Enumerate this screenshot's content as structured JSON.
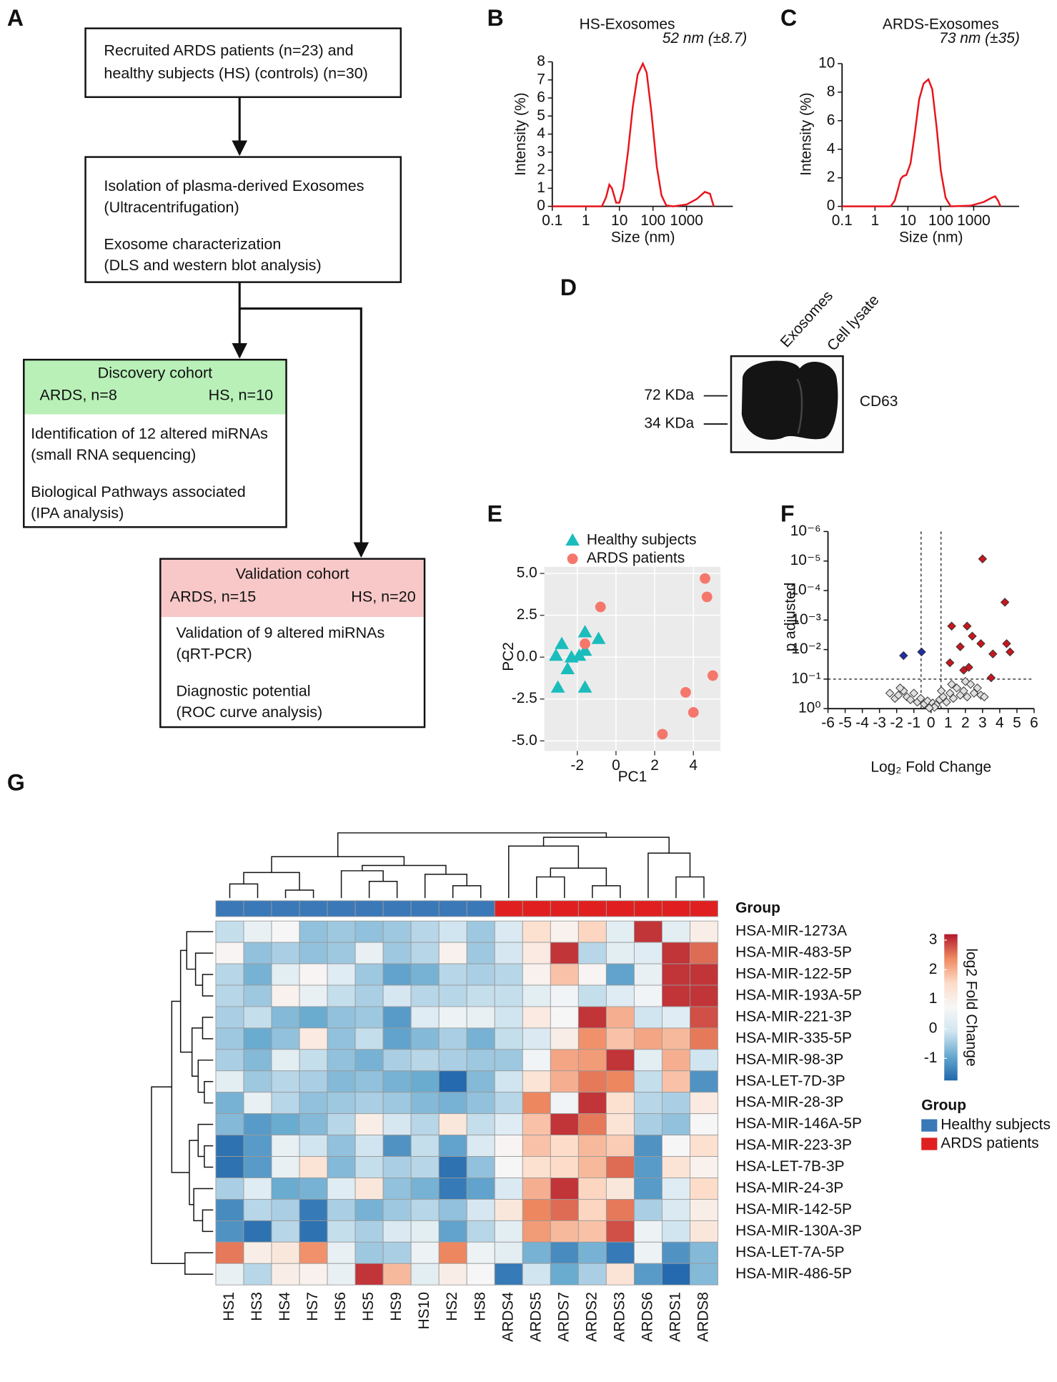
{
  "panel_labels": [
    "A",
    "B",
    "C",
    "D",
    "E",
    "F",
    "G"
  ],
  "flowchart": {
    "boxes": [
      {
        "lines": [
          "Recruited ARDS patients (n=23) and",
          "healthy subjects (HS) (controls) (n=30)"
        ]
      },
      {
        "lines": [
          "Isolation of plasma-derived Exosomes",
          "(Ultracentrifugation)",
          "Exosome characterization",
          "(DLS and western blot analysis)"
        ]
      },
      {
        "header": {
          "title": "Discovery cohort",
          "left": "ARDS, n=8",
          "right": "HS, n=10"
        },
        "lines": [
          "Identification of 12 altered miRNAs",
          "(small RNA sequencing)",
          "Biological Pathways associated",
          "(IPA analysis)"
        ]
      },
      {
        "header": {
          "title": "Validation cohort",
          "left": "ARDS, n=15",
          "right": "HS, n=20"
        },
        "lines": [
          "Validation of 9 altered miRNAs",
          "(qRT-PCR)",
          "Diagnostic potential",
          "(ROC curve analysis)"
        ]
      }
    ]
  },
  "blot": {
    "lanes": [
      "Exosomes",
      "Cell lysate"
    ],
    "markers": [
      "72 KDa",
      "34 KDa"
    ],
    "protein": "CD63"
  },
  "chart_data": [
    {
      "type": "line",
      "title": "HS-Exosomes",
      "annotation": "52 nm (±8.7)",
      "x_label": "Size (nm)",
      "y_label": "Intensity (%)",
      "x": [
        0.1,
        3,
        4,
        5,
        6,
        8,
        10,
        13,
        18,
        25,
        35,
        50,
        65,
        90,
        130,
        180,
        250,
        400,
        1000,
        2000,
        3500,
        5000,
        6000,
        6500
      ],
      "values": [
        0,
        0,
        0.5,
        1.2,
        1.0,
        0.2,
        0.2,
        1.0,
        3.0,
        5.5,
        7.3,
        7.9,
        7.4,
        5.2,
        2.2,
        0.6,
        0.05,
        0,
        0.1,
        0.4,
        0.8,
        0.7,
        0.2,
        0
      ],
      "color": "#e8141c",
      "xscale": "log",
      "xlim": [
        0.1,
        24000
      ],
      "xticks": [
        0.1,
        1,
        10,
        100,
        1000
      ],
      "ylim": [
        0,
        8
      ],
      "yticks": [
        0,
        1,
        2,
        3,
        4,
        5,
        6,
        7,
        8
      ]
    },
    {
      "type": "line",
      "title": "ARDS-Exosomes",
      "annotation": "73 nm (±35)",
      "x_label": "Size (nm)",
      "y_label": "Intensity (%)",
      "x": [
        0.1,
        3,
        4,
        5,
        6,
        7,
        9,
        12,
        16,
        22,
        30,
        42,
        55,
        75,
        100,
        140,
        200,
        800,
        2000,
        3500,
        4500,
        5500,
        6500
      ],
      "values": [
        0,
        0,
        0.4,
        1.2,
        1.9,
        2.1,
        2.2,
        3.0,
        5.0,
        7.5,
        8.6,
        8.9,
        8.2,
        5.5,
        2.5,
        0.6,
        0,
        0.05,
        0.3,
        0.6,
        0.7,
        0.4,
        0
      ],
      "color": "#e8141c",
      "xscale": "log",
      "xlim": [
        0.1,
        24000
      ],
      "xticks": [
        0.1,
        1,
        10,
        100,
        1000
      ],
      "ylim": [
        0,
        10
      ],
      "yticks": [
        0,
        2,
        4,
        6,
        8,
        10
      ]
    },
    {
      "type": "scatter",
      "x_label": "PC1",
      "y_label": "PC2",
      "series": [
        {
          "name": "Healthy subjects",
          "color": "#1bbcbc",
          "marker": "triangle",
          "x": [
            -3.1,
            -2.8,
            -2.3,
            -2.5,
            -1.9,
            -1.6,
            -1.6,
            -0.9,
            -3.0,
            -1.6
          ],
          "values": [
            0.1,
            0.8,
            0.0,
            -0.7,
            0.1,
            1.5,
            0.4,
            1.1,
            -1.8,
            -1.8
          ]
        },
        {
          "name": "ARDS patients",
          "color": "#f5776c",
          "marker": "circle",
          "x": [
            -0.8,
            -1.6,
            4.6,
            4.7,
            5.0,
            3.6,
            4.0,
            2.4
          ],
          "values": [
            3.0,
            0.8,
            4.7,
            3.6,
            -1.1,
            -2.1,
            -3.3,
            -4.6
          ]
        }
      ],
      "xlim": [
        -3.7,
        5.4
      ],
      "xticks": [
        -2,
        0,
        2,
        4
      ],
      "ylim": [
        -5.6,
        5.4
      ],
      "yticks": [
        {
          "value": -5,
          "label": "-5.0"
        },
        -2.5,
        {
          "value": 0,
          "label": "0.0"
        },
        2.5,
        {
          "value": 5,
          "label": "5.0"
        }
      ],
      "grid": true,
      "background": "#ebebeb"
    },
    {
      "type": "volcano",
      "x_label": "Log₂ Fold Change",
      "y_label": "p adjusted",
      "series": [
        {
          "color": "#e0e0e0",
          "marker": "diamond",
          "x": [
            -2.4,
            -2.1,
            -1.9,
            -1.6,
            -1.4,
            -1.2,
            -1.0,
            -0.8,
            -0.6,
            -0.4,
            -0.2,
            0.0,
            0.1,
            0.3,
            0.5,
            0.7,
            0.9,
            1.1,
            1.3,
            1.5,
            1.7,
            1.9,
            2.1,
            2.3,
            2.5,
            2.7,
            2.9,
            3.1,
            1.2,
            0.6,
            -1.8,
            2.0,
            0.2,
            -0.1
          ],
          "values": [
            0.3,
            0.45,
            0.35,
            0.25,
            0.4,
            0.5,
            0.3,
            0.6,
            0.45,
            0.7,
            0.55,
            0.85,
            0.65,
            0.75,
            0.5,
            0.4,
            0.6,
            0.3,
            0.45,
            0.2,
            0.35,
            0.25,
            0.4,
            0.15,
            0.3,
            0.2,
            0.35,
            0.4,
            0.15,
            0.25,
            0.2,
            0.12,
            0.9,
            0.95
          ]
        },
        {
          "color": "#1f2fa8",
          "marker": "diamond",
          "x": [
            -1.6,
            -0.55
          ],
          "values": [
            0.016,
            0.012
          ]
        },
        {
          "color": "#c8161e",
          "marker": "diamond",
          "x": [
            3.0,
            4.3,
            1.2,
            2.1,
            2.4,
            1.7,
            2.9,
            4.4,
            4.6,
            3.6,
            1.1,
            2.2,
            1.9,
            3.5
          ],
          "values": [
            8.5e-06,
            0.00025,
            0.0016,
            0.0016,
            0.0035,
            0.008,
            0.0063,
            0.0063,
            0.012,
            0.014,
            0.028,
            0.04,
            0.05,
            0.09
          ]
        }
      ],
      "cutoff_lines": {
        "x": [
          -0.58,
          0.58
        ],
        "y": 0.1
      },
      "xlim": [
        -6,
        6
      ],
      "xticks": [
        -6,
        -5,
        -4,
        -3,
        -2,
        -1,
        0,
        1,
        2,
        3,
        4,
        5,
        6
      ],
      "yscale": "log",
      "ylim": [
        1,
        1e-06
      ],
      "yticks": [
        {
          "value": 1e-06,
          "label": "10⁻⁶"
        },
        {
          "value": 1e-05,
          "label": "10⁻⁵"
        },
        {
          "value": 0.0001,
          "label": "10⁻⁴"
        },
        {
          "value": 0.001,
          "label": "10⁻³"
        },
        {
          "value": 0.01,
          "label": "10⁻²"
        },
        {
          "value": 0.1,
          "label": "10⁻¹"
        },
        {
          "value": 1,
          "label": "10⁰"
        }
      ]
    },
    {
      "type": "heatmap",
      "colorbar_label": "log2 Fold Change",
      "group_title": "Group",
      "categories": [
        "HS1",
        "HS3",
        "HS4",
        "HS7",
        "HS6",
        "HS5",
        "HS9",
        "HS10",
        "HS2",
        "HS8",
        "ARDS4",
        "ARDS5",
        "ARDS7",
        "ARDS2",
        "ARDS3",
        "ARDS6",
        "ARDS1",
        "ARDS8"
      ],
      "rows": [
        "HSA-MIR-1273A",
        "HSA-MIR-483-5P",
        "HSA-MIR-122-5P",
        "HSA-MIR-193A-5P",
        "HSA-MIR-221-3P",
        "HSA-MIR-335-5P",
        "HSA-MIR-98-3P",
        "HSA-LET-7D-3P",
        "HSA-MIR-28-3P",
        "HSA-MIR-146A-5P",
        "HSA-MIR-223-3P",
        "HSA-LET-7B-3P",
        "HSA-MIR-24-3P",
        "HSA-MIR-142-5P",
        "HSA-MIR-130A-3P",
        "HSA-LET-7A-5P",
        "HSA-MIR-486-5P"
      ],
      "groups": [
        {
          "name": "Healthy subjects",
          "color": "#3a78b8",
          "columns": [
            0,
            1,
            2,
            3,
            4,
            5,
            6,
            7,
            8,
            9
          ]
        },
        {
          "name": "ARDS patients",
          "color": "#e02020",
          "columns": [
            10,
            11,
            12,
            13,
            14,
            15,
            16,
            17
          ]
        }
      ],
      "values": [
        [
          -0.2,
          0.4,
          0.7,
          -0.6,
          -0.5,
          -0.6,
          -0.5,
          -0.3,
          -0.1,
          -0.5,
          0.1,
          1.4,
          0.9,
          1.6,
          0.3,
          3.0,
          0.3,
          1.0
        ],
        [
          0.8,
          -0.6,
          -0.4,
          -0.6,
          -0.5,
          0.4,
          -0.5,
          -0.3,
          0.9,
          -0.5,
          0.0,
          1.1,
          3.0,
          -0.3,
          0.3,
          0.2,
          3.0,
          2.6
        ],
        [
          -0.3,
          -0.8,
          0.3,
          0.8,
          0.2,
          -0.5,
          -1.0,
          -0.8,
          -0.3,
          -0.4,
          -0.3,
          0.9,
          1.8,
          0.8,
          -1.0,
          0.4,
          3.0,
          3.0
        ],
        [
          -0.3,
          -0.5,
          0.9,
          0.4,
          -0.2,
          -0.4,
          0.0,
          -0.3,
          -0.3,
          -0.2,
          -0.2,
          0.3,
          0.6,
          -0.2,
          0.2,
          0.6,
          3.0,
          3.0
        ],
        [
          -0.4,
          -0.2,
          -0.7,
          -0.9,
          -0.6,
          -0.5,
          -1.1,
          0.2,
          0.5,
          0.4,
          -0.1,
          1.1,
          0.7,
          3.0,
          2.0,
          -0.1,
          0.2,
          2.8
        ],
        [
          -0.5,
          -0.9,
          -0.6,
          1.1,
          -0.6,
          -0.2,
          -1.0,
          -0.7,
          -0.4,
          -0.8,
          -0.2,
          0.1,
          1.0,
          2.3,
          1.8,
          2.1,
          1.9,
          2.5
        ],
        [
          -0.4,
          -0.7,
          0.3,
          -0.2,
          -0.6,
          -0.8,
          -0.4,
          -0.3,
          -0.4,
          -0.5,
          -0.5,
          0.6,
          2.1,
          2.2,
          3.0,
          0.3,
          2.0,
          -0.1
        ],
        [
          0.3,
          -0.5,
          -0.3,
          -0.4,
          -0.7,
          -0.6,
          -0.8,
          -0.9,
          -1.7,
          -0.7,
          -0.1,
          1.3,
          2.0,
          2.5,
          2.4,
          -0.2,
          1.8,
          -1.2
        ],
        [
          -0.8,
          0.4,
          -0.3,
          -0.6,
          -0.5,
          -0.4,
          -0.5,
          -0.7,
          -0.8,
          -0.6,
          -0.3,
          2.4,
          0.6,
          3.0,
          1.4,
          -0.3,
          -0.4,
          1.1
        ],
        [
          -0.7,
          -1.1,
          -0.9,
          -0.7,
          -0.3,
          1.0,
          0.0,
          -0.3,
          1.2,
          -0.2,
          0.2,
          1.8,
          3.0,
          2.5,
          1.3,
          -0.4,
          -0.6,
          0.7
        ],
        [
          -1.6,
          -1.1,
          0.4,
          -0.1,
          -0.6,
          -0.1,
          -1.2,
          -0.2,
          -1.0,
          0.1,
          0.8,
          1.8,
          1.5,
          1.9,
          1.7,
          -1.2,
          0.7,
          1.4
        ],
        [
          -1.6,
          -1.1,
          0.4,
          1.3,
          -0.7,
          -0.2,
          -0.4,
          -0.3,
          -1.6,
          -0.6,
          0.7,
          1.4,
          1.5,
          1.9,
          2.6,
          -1.1,
          1.3,
          0.9
        ],
        [
          -0.4,
          0.2,
          -0.9,
          -0.8,
          0.2,
          1.2,
          -0.6,
          -0.8,
          -1.5,
          -1.0,
          0.1,
          2.0,
          3.0,
          1.6,
          1.2,
          -1.1,
          0.2,
          1.5
        ],
        [
          -1.3,
          -0.3,
          -0.4,
          -1.5,
          -0.4,
          -0.8,
          -0.5,
          -0.3,
          -0.6,
          0.0,
          1.2,
          2.4,
          2.6,
          1.6,
          2.5,
          -0.4,
          0.1,
          1.0
        ],
        [
          -1.2,
          -1.6,
          -0.3,
          -1.6,
          -0.2,
          -0.4,
          0.1,
          0.3,
          -1.0,
          -0.3,
          0.3,
          2.2,
          1.9,
          1.8,
          2.8,
          0.5,
          -0.1,
          1.2
        ],
        [
          2.5,
          1.0,
          1.2,
          2.3,
          0.4,
          -0.5,
          -0.4,
          0.5,
          2.4,
          0.5,
          0.3,
          -0.8,
          -1.3,
          -0.8,
          -1.5,
          0.5,
          -1.2,
          -0.7
        ],
        [
          0.4,
          -0.3,
          1.0,
          0.9,
          0.4,
          3.0,
          1.9,
          0.3,
          1.0,
          0.7,
          -1.5,
          -0.1,
          -0.9,
          -0.4,
          1.3,
          -1.1,
          -1.7,
          -0.7
        ]
      ],
      "zlim": [
        -1.75,
        3.2
      ],
      "zticks": [
        -1,
        0,
        1,
        2,
        3
      ],
      "colors": [
        "#2166ac",
        "#67a9cf",
        "#d1e5f0",
        "#f7f7f7",
        "#fddbc7",
        "#ef8a62",
        "#b2182b"
      ]
    }
  ]
}
